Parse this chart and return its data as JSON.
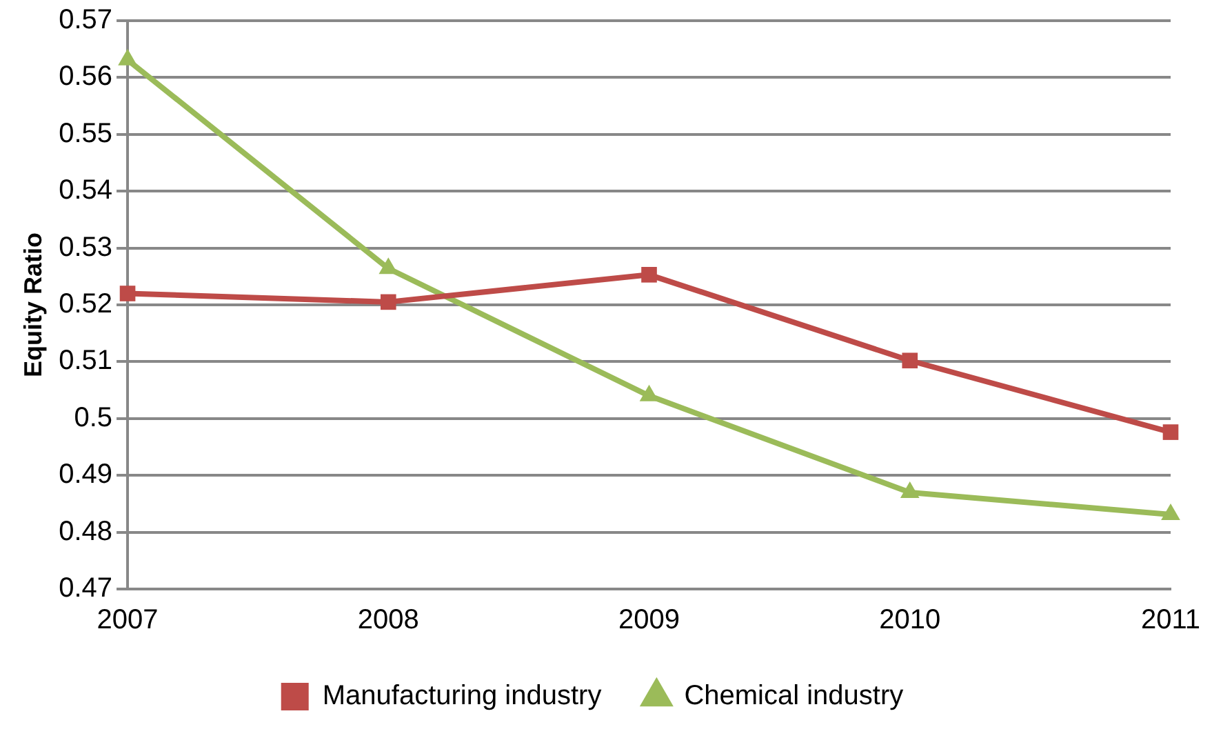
{
  "chart_data": {
    "type": "line",
    "ylabel": "Equity Ratio",
    "categories": [
      "2007",
      "2008",
      "2009",
      "2010",
      "2011"
    ],
    "series": [
      {
        "name": "Manufacturing industry",
        "color": "#be4b48",
        "marker": "square",
        "values": [
          0.522,
          0.5205,
          0.5253,
          0.5102,
          0.4976
        ]
      },
      {
        "name": "Chemical industry",
        "color": "#9bbb59",
        "marker": "triangle",
        "values": [
          0.5631,
          0.5264,
          0.504,
          0.487,
          0.4831
        ]
      }
    ],
    "ylim": [
      0.47,
      0.57
    ],
    "yticks": [
      0.47,
      0.48,
      0.49,
      0.5,
      0.51,
      0.52,
      0.53,
      0.54,
      0.55,
      0.56,
      0.57
    ],
    "grid": "y",
    "legend": "bottom",
    "line_style": "solid"
  }
}
